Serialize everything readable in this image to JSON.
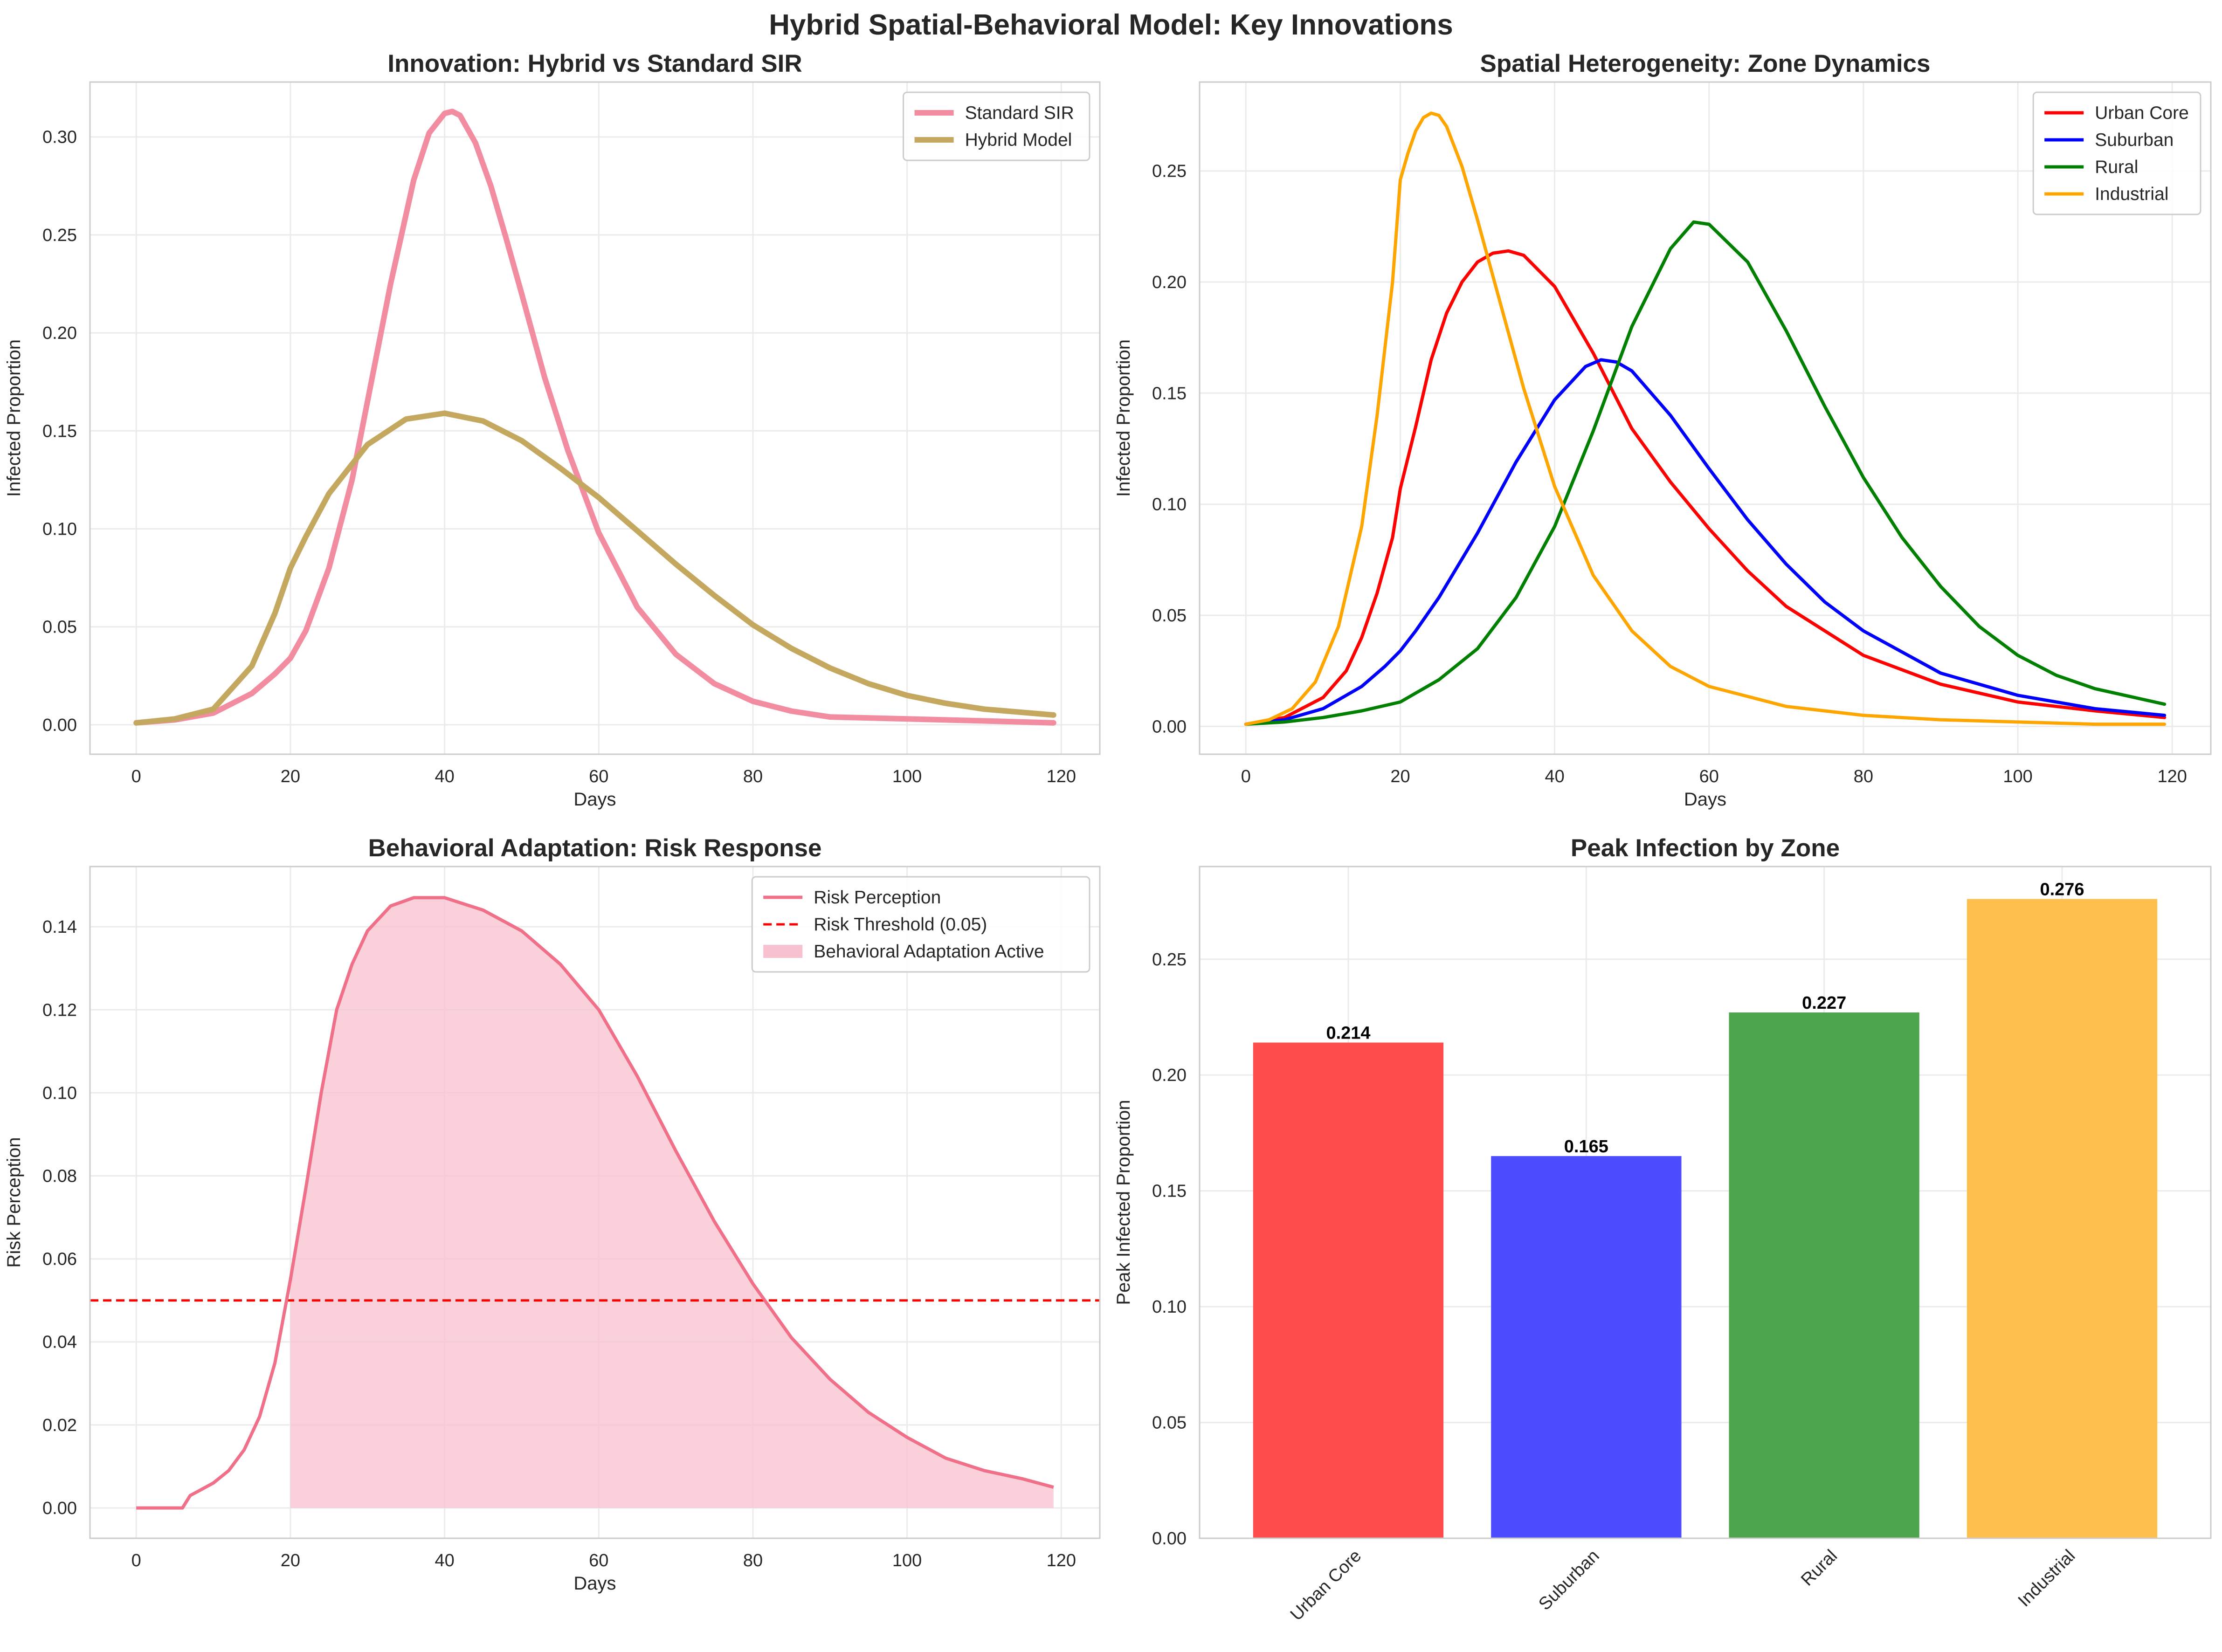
{
  "figure": {
    "suptitle": "Hybrid Spatial-Behavioral Model: Key Innovations"
  },
  "chart_data": [
    {
      "type": "line",
      "title": "Innovation: Hybrid vs Standard SIR",
      "xlabel": "Days",
      "ylabel": "Infected Proportion",
      "xlim": [
        -6,
        125
      ],
      "ylim": [
        -0.015,
        0.328
      ],
      "xticks": [
        0,
        20,
        40,
        60,
        80,
        100,
        120
      ],
      "xtick_labels": [
        "0",
        "20",
        "40",
        "60",
        "80",
        "100",
        "120"
      ],
      "yticks": [
        0,
        0.05,
        0.1,
        0.15,
        0.2,
        0.25,
        0.3
      ],
      "ytick_labels": [
        "0.00",
        "0.05",
        "0.10",
        "0.15",
        "0.20",
        "0.25",
        "0.30"
      ],
      "grid": true,
      "legend": "top-right",
      "series": [
        {
          "name": "Standard SIR",
          "color": "#f28ca1",
          "x": [
            0,
            5,
            10,
            15,
            18,
            20,
            22,
            25,
            28,
            30,
            33,
            36,
            38,
            40,
            41,
            42,
            44,
            46,
            48,
            50,
            53,
            56,
            60,
            65,
            70,
            75,
            80,
            85,
            90,
            100,
            110,
            119
          ],
          "y": [
            0.001,
            0.0025,
            0.006,
            0.016,
            0.026,
            0.034,
            0.048,
            0.08,
            0.125,
            0.165,
            0.225,
            0.278,
            0.302,
            0.312,
            0.313,
            0.311,
            0.297,
            0.275,
            0.248,
            0.22,
            0.177,
            0.14,
            0.098,
            0.06,
            0.036,
            0.021,
            0.012,
            0.007,
            0.004,
            0.003,
            0.002,
            0.001
          ]
        },
        {
          "name": "Hybrid Model",
          "color": "#c4a85f",
          "x": [
            0,
            5,
            10,
            15,
            18,
            20,
            22,
            25,
            30,
            35,
            40,
            45,
            50,
            55,
            60,
            65,
            70,
            75,
            80,
            85,
            90,
            95,
            100,
            105,
            110,
            119
          ],
          "y": [
            0.001,
            0.003,
            0.008,
            0.03,
            0.057,
            0.08,
            0.096,
            0.118,
            0.143,
            0.156,
            0.159,
            0.155,
            0.145,
            0.131,
            0.116,
            0.099,
            0.082,
            0.066,
            0.051,
            0.039,
            0.029,
            0.021,
            0.015,
            0.011,
            0.008,
            0.005
          ]
        }
      ]
    },
    {
      "type": "line",
      "title": "Spatial Heterogeneity: Zone Dynamics",
      "xlabel": "Days",
      "ylabel": "Infected Proportion",
      "xlim": [
        -6,
        125
      ],
      "ylim": [
        -0.0125,
        0.29
      ],
      "xticks": [
        0,
        20,
        40,
        60,
        80,
        100,
        120
      ],
      "xtick_labels": [
        "0",
        "20",
        "40",
        "60",
        "80",
        "100",
        "120"
      ],
      "yticks": [
        0,
        0.05,
        0.1,
        0.15,
        0.2,
        0.25
      ],
      "ytick_labels": [
        "0.00",
        "0.05",
        "0.10",
        "0.15",
        "0.20",
        "0.25"
      ],
      "grid": true,
      "legend": "top-right",
      "series": [
        {
          "name": "Urban Core",
          "color": "#ff0000",
          "x": [
            0,
            5,
            10,
            13,
            15,
            17,
            19,
            20,
            22,
            24,
            26,
            28,
            30,
            32,
            34,
            36,
            40,
            45,
            50,
            55,
            60,
            65,
            70,
            80,
            90,
            100,
            110,
            119
          ],
          "y": [
            0.001,
            0.004,
            0.013,
            0.025,
            0.04,
            0.06,
            0.085,
            0.107,
            0.135,
            0.165,
            0.186,
            0.2,
            0.209,
            0.213,
            0.214,
            0.212,
            0.198,
            0.168,
            0.134,
            0.11,
            0.089,
            0.07,
            0.054,
            0.032,
            0.019,
            0.011,
            0.007,
            0.004
          ]
        },
        {
          "name": "Suburban",
          "color": "#0000ff",
          "x": [
            0,
            5,
            10,
            15,
            18,
            20,
            22,
            25,
            30,
            35,
            40,
            44,
            46,
            48,
            50,
            55,
            60,
            65,
            70,
            75,
            80,
            90,
            100,
            110,
            119
          ],
          "y": [
            0.001,
            0.003,
            0.008,
            0.018,
            0.027,
            0.034,
            0.043,
            0.058,
            0.087,
            0.119,
            0.147,
            0.162,
            0.165,
            0.164,
            0.16,
            0.14,
            0.116,
            0.093,
            0.073,
            0.056,
            0.043,
            0.024,
            0.014,
            0.008,
            0.005
          ]
        },
        {
          "name": "Rural",
          "color": "#008000",
          "x": [
            0,
            5,
            10,
            15,
            20,
            22,
            25,
            30,
            35,
            40,
            45,
            50,
            55,
            58,
            60,
            65,
            70,
            75,
            80,
            85,
            90,
            95,
            100,
            105,
            110,
            119
          ],
          "y": [
            0.001,
            0.002,
            0.004,
            0.007,
            0.011,
            0.015,
            0.021,
            0.035,
            0.058,
            0.09,
            0.133,
            0.18,
            0.215,
            0.227,
            0.226,
            0.209,
            0.178,
            0.144,
            0.112,
            0.085,
            0.063,
            0.045,
            0.032,
            0.023,
            0.017,
            0.01
          ]
        },
        {
          "name": "Industrial",
          "color": "#ffa500",
          "x": [
            0,
            3,
            6,
            9,
            12,
            15,
            17,
            19,
            20,
            21,
            22,
            23,
            24,
            25,
            26,
            28,
            30,
            33,
            36,
            40,
            45,
            50,
            55,
            60,
            70,
            80,
            90,
            100,
            110,
            119
          ],
          "y": [
            0.001,
            0.003,
            0.008,
            0.02,
            0.045,
            0.09,
            0.14,
            0.2,
            0.246,
            0.258,
            0.268,
            0.274,
            0.276,
            0.275,
            0.27,
            0.252,
            0.228,
            0.19,
            0.152,
            0.108,
            0.068,
            0.043,
            0.027,
            0.018,
            0.009,
            0.005,
            0.003,
            0.002,
            0.001,
            0.001
          ]
        }
      ]
    },
    {
      "type": "area",
      "title": "Behavioral Adaptation: Risk Response",
      "xlabel": "Days",
      "ylabel": "Risk Perception",
      "xlim": [
        -6,
        125
      ],
      "ylim": [
        -0.0073,
        0.1545
      ],
      "xticks": [
        0,
        20,
        40,
        60,
        80,
        100,
        120
      ],
      "xtick_labels": [
        "0",
        "20",
        "40",
        "60",
        "80",
        "100",
        "120"
      ],
      "yticks": [
        0,
        0.02,
        0.04,
        0.06,
        0.08,
        0.1,
        0.12,
        0.14
      ],
      "ytick_labels": [
        "0.00",
        "0.02",
        "0.04",
        "0.06",
        "0.08",
        "0.10",
        "0.12",
        "0.14"
      ],
      "grid": true,
      "legend": "top-right",
      "threshold": {
        "name": "Risk Threshold (0.05)",
        "value": 0.05,
        "color": "#ff0000"
      },
      "fill": {
        "name": "Behavioral Adaptation Active",
        "color": "#f8c1cf",
        "x_start": 20
      },
      "series": [
        {
          "name": "Risk Perception",
          "color": "#f07089",
          "x": [
            0,
            6,
            7,
            8,
            10,
            12,
            14,
            16,
            18,
            20,
            22,
            24,
            26,
            28,
            30,
            33,
            36,
            38,
            40,
            45,
            50,
            55,
            60,
            65,
            70,
            75,
            80,
            85,
            90,
            95,
            100,
            105,
            110,
            115,
            119
          ],
          "y": [
            0,
            0,
            0.003,
            0.004,
            0.006,
            0.009,
            0.014,
            0.022,
            0.035,
            0.055,
            0.077,
            0.1,
            0.12,
            0.131,
            0.139,
            0.145,
            0.147,
            0.147,
            0.147,
            0.144,
            0.139,
            0.131,
            0.12,
            0.104,
            0.086,
            0.069,
            0.054,
            0.041,
            0.031,
            0.023,
            0.017,
            0.012,
            0.009,
            0.007,
            0.005
          ]
        }
      ]
    },
    {
      "type": "bar",
      "title": "Peak Infection by Zone",
      "xlabel": "",
      "ylabel": "Peak Infected Proportion",
      "ylim": [
        0,
        0.29
      ],
      "yticks": [
        0,
        0.05,
        0.1,
        0.15,
        0.2,
        0.25
      ],
      "ytick_labels": [
        "0.00",
        "0.05",
        "0.10",
        "0.15",
        "0.20",
        "0.25"
      ],
      "grid": true,
      "categories": [
        "Urban Core",
        "Suburban",
        "Rural",
        "Industrial"
      ],
      "values": [
        0.214,
        0.165,
        0.227,
        0.276
      ],
      "value_labels": [
        "0.214",
        "0.165",
        "0.227",
        "0.276"
      ],
      "colors": [
        "#ff4d4d",
        "#4d4dff",
        "#4da64d",
        "#ffbf4d"
      ]
    }
  ]
}
